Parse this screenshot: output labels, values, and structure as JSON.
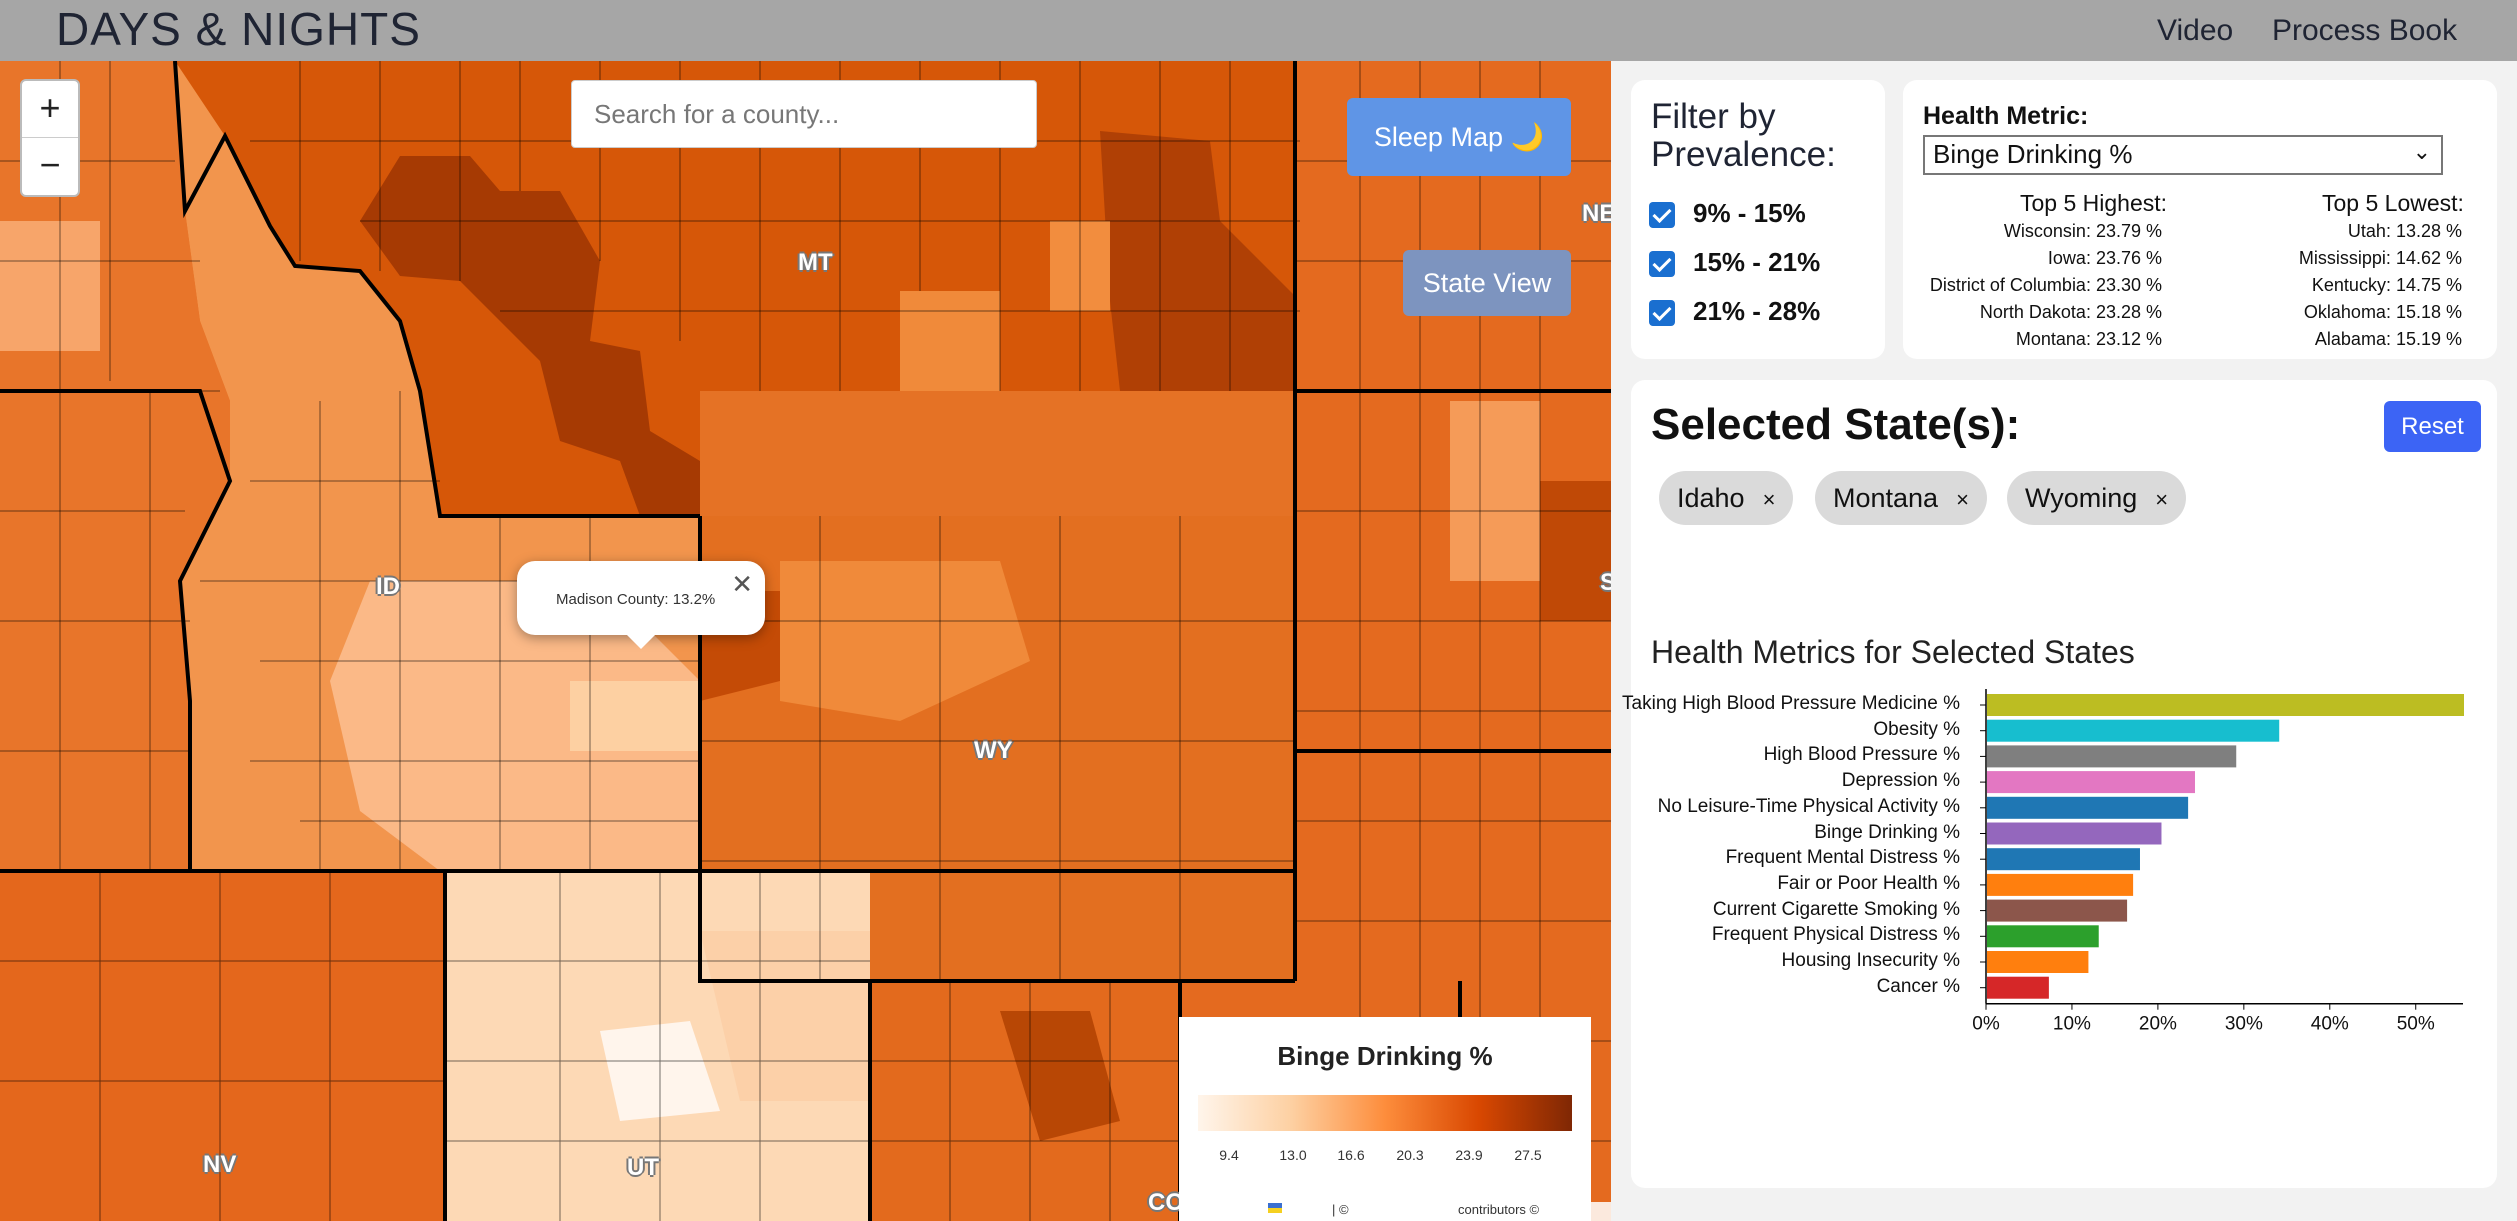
{
  "header": {
    "brand": "DAYS & NIGHTS",
    "nav": [
      "Video",
      "Process Book"
    ]
  },
  "map": {
    "zoom_in": "+",
    "zoom_out": "−",
    "search_placeholder": "Search for a county...",
    "sleep_map_label": "Sleep Map 🌙",
    "state_view_label": "State View",
    "state_labels": [
      "MT",
      "ID",
      "WY",
      "NV",
      "UT",
      "CO",
      "NE",
      "S"
    ],
    "popup_text": "Madison County: 13.2%",
    "popup_close": "✕",
    "legend": {
      "title": "Binge Drinking %",
      "ticks": [
        "9.4",
        "13.0",
        "16.6",
        "20.3",
        "23.9",
        "27.5"
      ]
    },
    "attribution": "contributors ©",
    "attribution_sep": "| ©"
  },
  "filter": {
    "title": "Filter by Prevalence:",
    "options": [
      {
        "label": "9% - 15%",
        "checked": true
      },
      {
        "label": "15% - 21%",
        "checked": true
      },
      {
        "label": "21% - 28%",
        "checked": true
      }
    ]
  },
  "health_metric": {
    "label": "Health Metric:",
    "selected": "Binge Drinking %",
    "top_highest_title": "Top 5 Highest:",
    "top_lowest_title": "Top 5 Lowest:",
    "top_highest": [
      "Wisconsin: 23.79 %",
      "Iowa: 23.76 %",
      "District of Columbia: 23.30 %",
      "North Dakota: 23.28 %",
      "Montana: 23.12 %"
    ],
    "top_lowest": [
      "Utah: 13.28 %",
      "Mississippi: 14.62 %",
      "Kentucky: 14.75 %",
      "Oklahoma: 15.18 %",
      "Alabama: 15.19 %"
    ]
  },
  "selected_states": {
    "title": "Selected State(s):",
    "reset_label": "Reset",
    "chips": [
      "Idaho",
      "Montana",
      "Wyoming"
    ],
    "chip_close": "×"
  },
  "chart_data": {
    "type": "bar",
    "title": "Health Metrics for Selected States",
    "orientation": "horizontal",
    "categories": [
      "Taking High Blood Pressure Medicine %",
      "Obesity %",
      "High Blood Pressure %",
      "Depression %",
      "No Leisure-Time Physical Activity %",
      "Binge Drinking %",
      "Frequent Mental Distress %",
      "Fair or Poor Health %",
      "Current Cigarette Smoking %",
      "Frequent Physical Distress %",
      "Housing Insecurity %",
      "Cancer %"
    ],
    "values": [
      55.5,
      34,
      29,
      24.2,
      23.4,
      20.3,
      17.8,
      17,
      16.3,
      13,
      11.8,
      7.2
    ],
    "colors": [
      "#bcbd22",
      "#17becf",
      "#7f7f7f",
      "#e377c2",
      "#1f77b4",
      "#9467bd",
      "#1f77b4",
      "#ff7f0e",
      "#8c564b",
      "#2ca02c",
      "#ff7f0e",
      "#d62728"
    ],
    "xticks": [
      "0%",
      "10%",
      "20%",
      "30%",
      "40%",
      "50%"
    ],
    "xlim": [
      0,
      55.5
    ]
  }
}
